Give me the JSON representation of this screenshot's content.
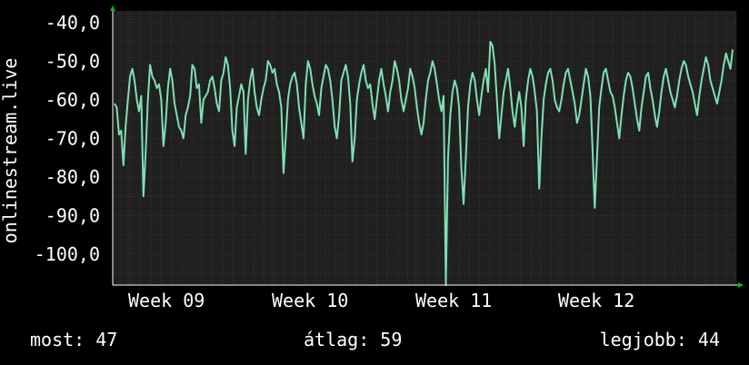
{
  "chart_data": {
    "type": "line",
    "ylabel": "onlinestream.live",
    "ylim": [
      -108,
      -37
    ],
    "y_ticks": [
      "-40,0",
      "-50,0",
      "-60,0",
      "-70,0",
      "-80,0",
      "-90,0",
      "-100,0"
    ],
    "x_ticks": [
      "Week 09",
      "Week 10",
      "Week 11",
      "Week 12"
    ],
    "grid": true,
    "colors": {
      "background": "#000000",
      "plot": "#202020",
      "line": "#7ee0b4",
      "grid": "#4a4a4a",
      "axis_arrow": "#00c000"
    },
    "series": [
      {
        "values": [
          -61,
          -62,
          -69,
          -68,
          -77,
          -67,
          -60,
          -54,
          -52,
          -55,
          -60,
          -63,
          -59,
          -85,
          -74,
          -60,
          -51,
          -54,
          -55,
          -57,
          -56,
          -60,
          -72,
          -66,
          -57,
          -52,
          -55,
          -61,
          -64,
          -67,
          -68,
          -70,
          -64,
          -62,
          -59,
          -51,
          -52,
          -57,
          -56,
          -66,
          -60,
          -59,
          -58,
          -55,
          -54,
          -57,
          -61,
          -63,
          -55,
          -53,
          -49,
          -51,
          -57,
          -68,
          -72,
          -62,
          -59,
          -56,
          -58,
          -74,
          -60,
          -55,
          -52,
          -58,
          -62,
          -64,
          -60,
          -57,
          -55,
          -50,
          -51,
          -53,
          -52,
          -56,
          -58,
          -62,
          -79,
          -70,
          -60,
          -56,
          -54,
          -53,
          -56,
          -62,
          -66,
          -70,
          -56,
          -50,
          -52,
          -56,
          -59,
          -61,
          -64,
          -57,
          -54,
          -51,
          -52,
          -55,
          -60,
          -67,
          -70,
          -64,
          -55,
          -53,
          -51,
          -54,
          -61,
          -76,
          -70,
          -60,
          -56,
          -53,
          -51,
          -55,
          -57,
          -56,
          -61,
          -65,
          -60,
          -55,
          -52,
          -56,
          -59,
          -63,
          -58,
          -55,
          -50,
          -52,
          -55,
          -60,
          -63,
          -60,
          -57,
          -52,
          -54,
          -57,
          -62,
          -66,
          -69,
          -66,
          -60,
          -55,
          -53,
          -50,
          -52,
          -56,
          -60,
          -63,
          -59,
          -108,
          -75,
          -64,
          -58,
          -55,
          -57,
          -62,
          -78,
          -87,
          -75,
          -62,
          -56,
          -53,
          -55,
          -60,
          -64,
          -59,
          -55,
          -52,
          -58,
          -45,
          -46,
          -51,
          -60,
          -70,
          -64,
          -58,
          -55,
          -52,
          -57,
          -63,
          -67,
          -62,
          -58,
          -62,
          -72,
          -60,
          -55,
          -52,
          -54,
          -58,
          -63,
          -83,
          -70,
          -60,
          -56,
          -53,
          -52,
          -55,
          -60,
          -62,
          -63,
          -60,
          -56,
          -53,
          -52,
          -55,
          -58,
          -61,
          -66,
          -64,
          -60,
          -56,
          -52,
          -54,
          -59,
          -73,
          -88,
          -75,
          -62,
          -57,
          -53,
          -52,
          -55,
          -58,
          -59,
          -62,
          -66,
          -70,
          -64,
          -59,
          -55,
          -53,
          -54,
          -57,
          -61,
          -65,
          -68,
          -62,
          -58,
          -54,
          -53,
          -57,
          -60,
          -64,
          -67,
          -63,
          -58,
          -54,
          -52,
          -55,
          -58,
          -60,
          -62,
          -59,
          -55,
          -52,
          -50,
          -51,
          -54,
          -56,
          -58,
          -61,
          -64,
          -59,
          -55,
          -52,
          -49,
          -51,
          -55,
          -57,
          -59,
          -61,
          -58,
          -55,
          -51,
          -48,
          -50,
          -52,
          -47
        ]
      }
    ]
  },
  "stats": {
    "most": "most: 47",
    "avg": "átlag: 59",
    "max": "legjobb: 44"
  }
}
